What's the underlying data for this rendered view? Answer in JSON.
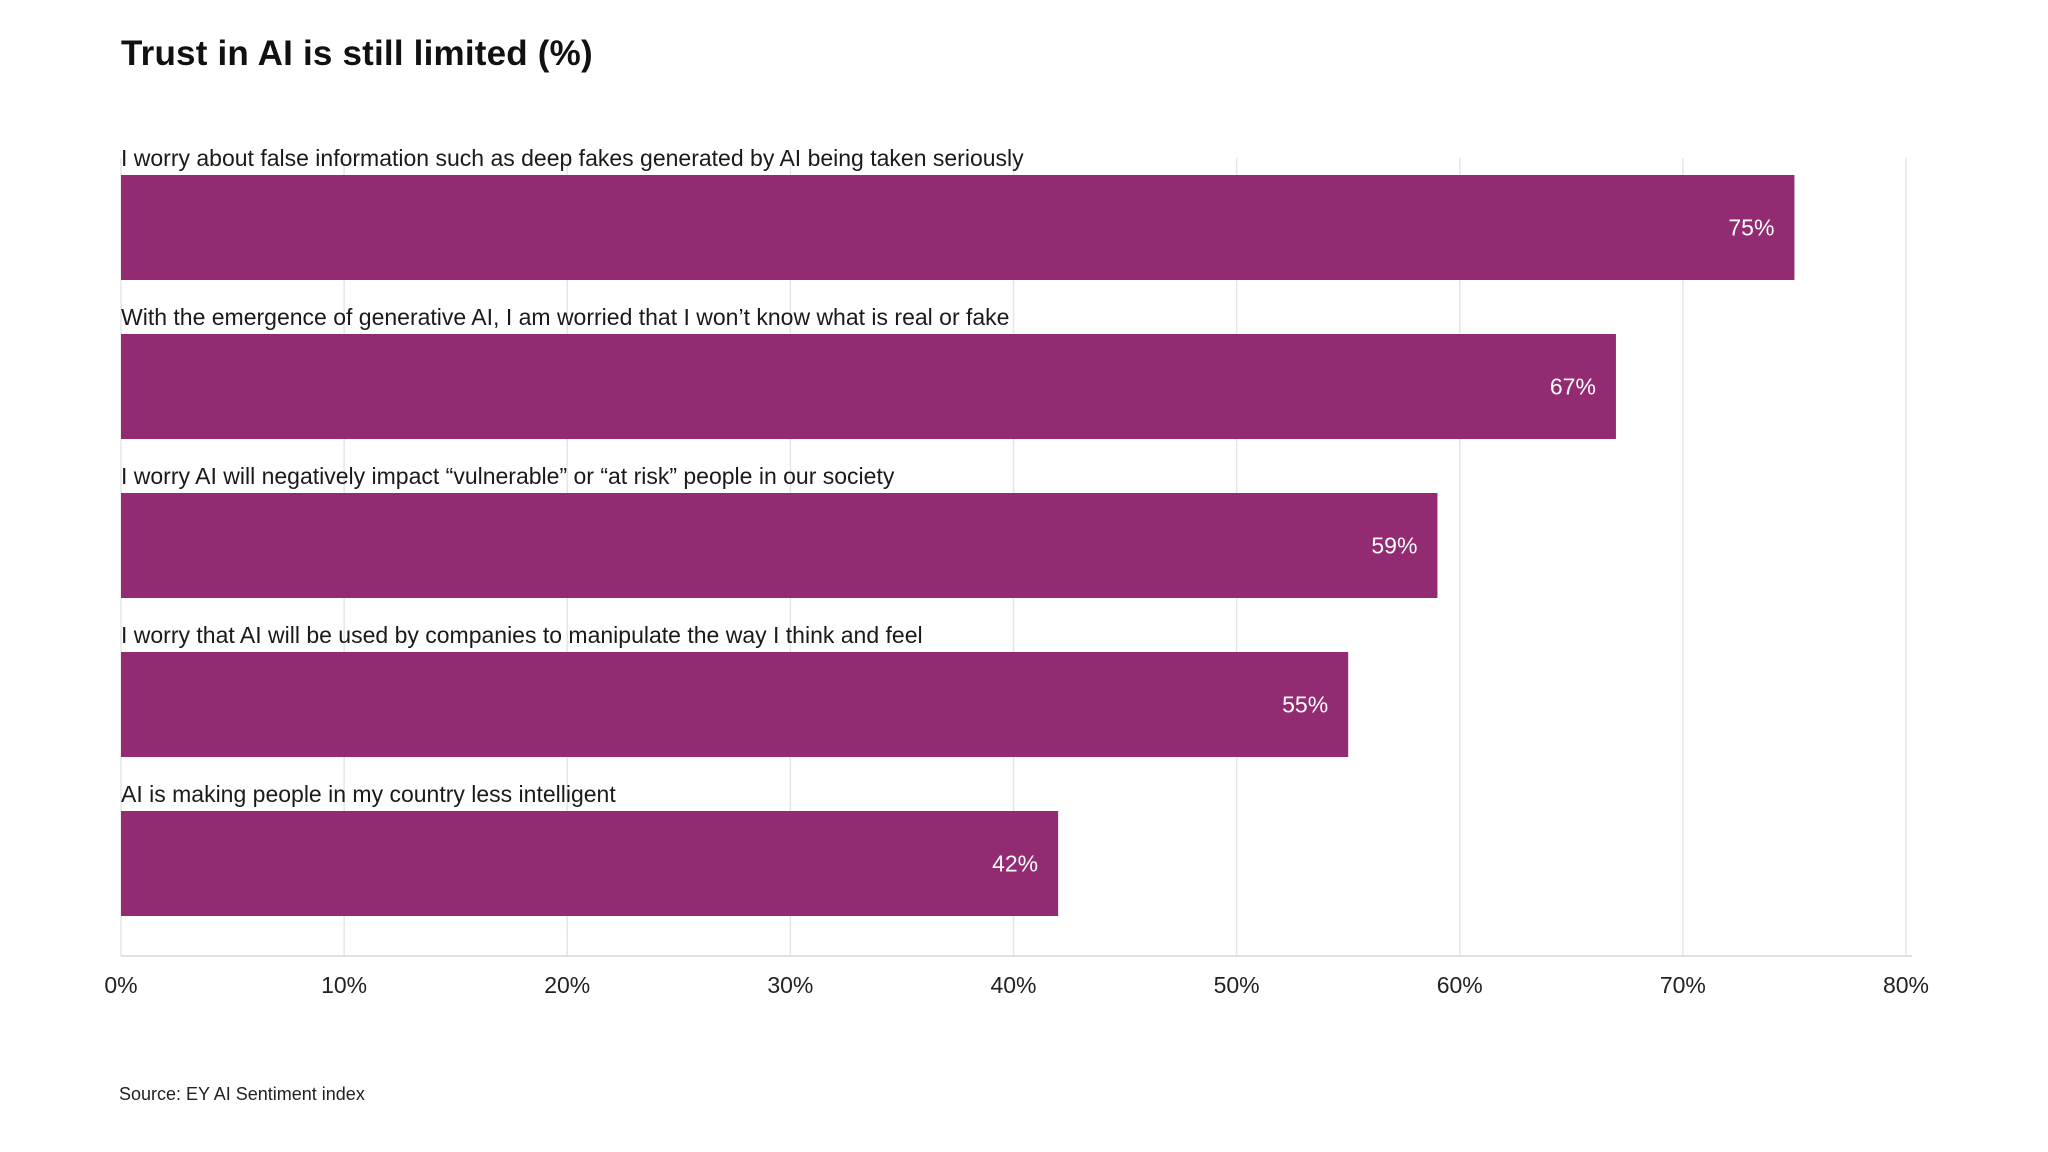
{
  "chart_data": {
    "type": "bar",
    "orientation": "horizontal",
    "title": "Trust in AI is still limited (%)",
    "categories": [
      "I worry about false information such as deep fakes generated by AI being taken seriously",
      "With the emergence of generative AI, I am worried that I won’t know what is real or fake",
      "I worry AI will negatively impact “vulnerable” or “at risk” people in our society",
      "I worry that AI will be used by companies to manipulate the way I think and feel",
      "AI is making people in my country less intelligent"
    ],
    "values": [
      75,
      67,
      59,
      55,
      42
    ],
    "value_labels": [
      "75%",
      "67%",
      "59%",
      "55%",
      "42%"
    ],
    "xlim": [
      0,
      80
    ],
    "x_ticks": [
      0,
      10,
      20,
      30,
      40,
      50,
      60,
      70,
      80
    ],
    "x_tick_labels": [
      "0%",
      "10%",
      "20%",
      "30%",
      "40%",
      "50%",
      "60%",
      "70%",
      "80%"
    ],
    "grid": true,
    "bar_color": "#922B72",
    "source": "Source: EY AI Sentiment index"
  }
}
